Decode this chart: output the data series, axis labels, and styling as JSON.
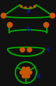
{
  "bg_color": "#111111",
  "green": "#00aa00",
  "orange": "#cc5500",
  "blue": "#1111cc",
  "label_a": "a",
  "label_b": "b",
  "label_c": "c",
  "label_d": "d",
  "fig_w": 0.8,
  "fig_h": 1.21,
  "dpi": 100
}
